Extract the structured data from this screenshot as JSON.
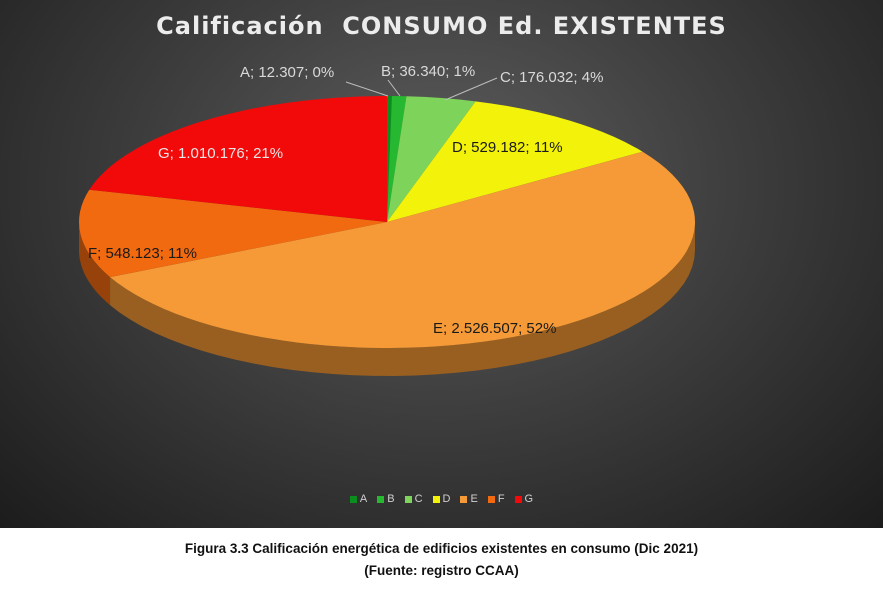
{
  "chart_data": {
    "type": "pie",
    "title": "Calificación  CONSUMO Ed. EXISTENTES",
    "slices": [
      {
        "category": "A",
        "value": 12307,
        "percent": 0,
        "label": "A; 12.307; 0%",
        "color": "#0a8f1f"
      },
      {
        "category": "B",
        "value": 36340,
        "percent": 1,
        "label": "B; 36.340; 1%",
        "color": "#25b830"
      },
      {
        "category": "C",
        "value": 176032,
        "percent": 4,
        "label": "C; 176.032; 4%",
        "color": "#7ed35a"
      },
      {
        "category": "D",
        "value": 529182,
        "percent": 11,
        "label": "D; 529.182; 11%",
        "color": "#f2f20a"
      },
      {
        "category": "E",
        "value": 2526507,
        "percent": 52,
        "label": "E; 2.526.507; 52%",
        "color": "#f59a36"
      },
      {
        "category": "F",
        "value": 548123,
        "percent": 11,
        "label": "F; 548.123; 11%",
        "color": "#f26a10"
      },
      {
        "category": "G",
        "value": 1010176,
        "percent": 21,
        "label": "G; 1.010.176; 21%",
        "color": "#f20a0a"
      }
    ],
    "legend": {
      "position": "bottom",
      "entries": [
        "A",
        "B",
        "C",
        "D",
        "E",
        "F",
        "G"
      ]
    },
    "style": "3d-pie"
  },
  "caption": {
    "line1": "Figura 3.3 Calificación energética de edificios existentes en consumo (Dic 2021)",
    "line2": "(Fuente: registro CCAA)"
  }
}
